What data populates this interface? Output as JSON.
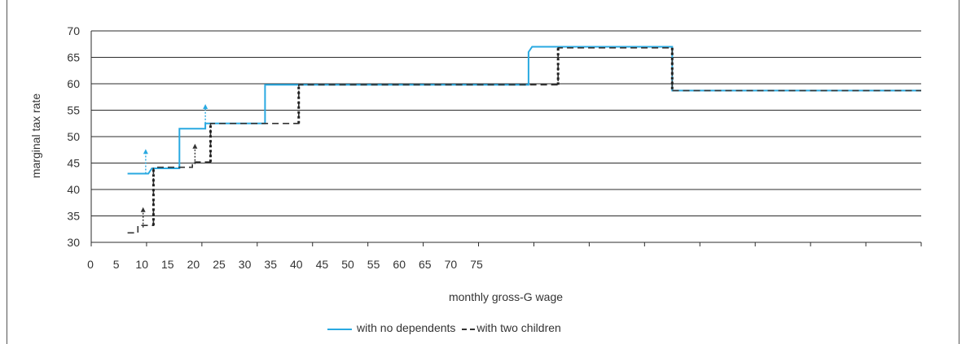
{
  "chart_data": {
    "type": "line",
    "title": "",
    "xlabel": "monthly gross-G wage",
    "ylabel": "marginal tax rate",
    "ylim": [
      30,
      70
    ],
    "yticks": [
      30,
      35,
      40,
      45,
      50,
      55,
      60,
      65,
      70
    ],
    "xlim": [
      0,
      160
    ],
    "xtick_labels": [
      "0",
      "5",
      "10",
      "15",
      "20",
      "25",
      "30",
      "35",
      "40",
      "45",
      "50",
      "55",
      "60",
      "65",
      "70",
      "75"
    ],
    "grid": true,
    "legend_position": "bottom",
    "series": [
      {
        "name": "with no dependents",
        "color": "#29a9e1",
        "style": "solid",
        "points": [
          [
            7,
            43
          ],
          [
            11,
            43
          ],
          [
            11.7,
            44
          ],
          [
            17,
            44
          ],
          [
            17,
            51.5
          ],
          [
            22,
            51.5
          ],
          [
            22,
            52.5
          ],
          [
            33.5,
            52.5
          ],
          [
            33.5,
            59.8
          ],
          [
            84.3,
            59.8
          ],
          [
            84.3,
            66
          ],
          [
            85,
            67
          ],
          [
            112,
            67
          ],
          [
            112,
            58.7
          ],
          [
            160,
            58.7
          ]
        ]
      },
      {
        "name": "with two children",
        "color": "#333333",
        "style": "dashed",
        "points": [
          [
            7,
            31.8
          ],
          [
            9,
            31.8
          ],
          [
            9,
            33.2
          ],
          [
            12,
            33.2
          ],
          [
            12,
            44.2
          ],
          [
            19.5,
            44.2
          ],
          [
            19.5,
            45.2
          ],
          [
            23,
            45.2
          ],
          [
            23,
            52.5
          ],
          [
            40,
            52.5
          ],
          [
            40,
            59.8
          ],
          [
            90,
            59.8
          ],
          [
            90,
            66.8
          ],
          [
            112,
            66.8
          ],
          [
            112,
            58.7
          ],
          [
            160,
            58.7
          ]
        ]
      }
    ],
    "arrows": [
      {
        "series": "with no dependents",
        "x": 10.5,
        "from": 43,
        "to": 47.5
      },
      {
        "series": "with no dependents",
        "x": 22,
        "from": 52.5,
        "to": 56
      },
      {
        "series": "with two children",
        "x": 10,
        "from": 32.8,
        "to": 36.5
      },
      {
        "series": "with two children",
        "x": 20,
        "from": 44.8,
        "to": 48.5
      }
    ]
  },
  "legend": {
    "blue_label": "with no dependents",
    "black_label": "with two children"
  }
}
